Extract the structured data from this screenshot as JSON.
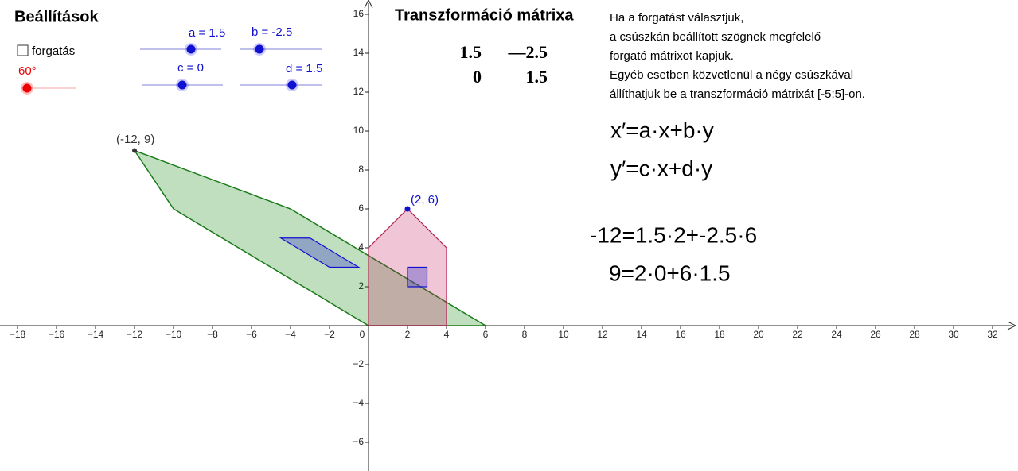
{
  "settings": {
    "title": "Beállítások",
    "checkbox_label": "forgatás",
    "angle": "60°",
    "sliders": [
      "a = 1.5",
      "b = -2.5",
      "c = 0",
      "d = 1.5"
    ]
  },
  "matrix": {
    "title": "Transzformáció mátrixa",
    "rows": [
      [
        "1.5",
        "—2.5"
      ],
      [
        "0",
        "1.5"
      ]
    ]
  },
  "description": [
    "Ha a forgatást választjuk,",
    "a csúszkán beállított szögnek megfelelő",
    "forgató mátrixot kapjuk.",
    "Egyéb esetben közvetlenül a négy csúszkával",
    "állíthatjuk be a transzformáció mátrixát [-5;5]-on."
  ],
  "formulas": [
    "x′=a·x+b·y",
    "y′=c·x+d·y"
  ],
  "equations": [
    "-12=1.5·2+-2.5·6",
    "9=2·0+6·1.5"
  ],
  "points": [
    "(-12, 9)",
    "(2, 6)"
  ],
  "axes": {
    "xticks": [
      {
        "value": -18,
        "label": "−18"
      },
      {
        "value": -16,
        "label": "−16"
      },
      {
        "value": -14,
        "label": "−14"
      },
      {
        "value": -12,
        "label": "−12"
      },
      {
        "value": -10,
        "label": "−10"
      },
      {
        "value": -8,
        "label": "−8"
      },
      {
        "value": -6,
        "label": "−6"
      },
      {
        "value": -4,
        "label": "−4"
      },
      {
        "value": -2,
        "label": "−2"
      },
      0,
      2,
      4,
      6,
      8,
      10,
      12,
      14,
      16,
      18,
      20,
      22,
      24,
      26,
      28,
      30,
      32
    ],
    "yticks": [
      {
        "value": -6,
        "label": "−6"
      },
      {
        "value": -4,
        "label": "−4"
      },
      {
        "value": -2,
        "label": "−2"
      },
      2,
      4,
      6,
      8,
      10,
      12,
      14,
      16
    ]
  }
}
